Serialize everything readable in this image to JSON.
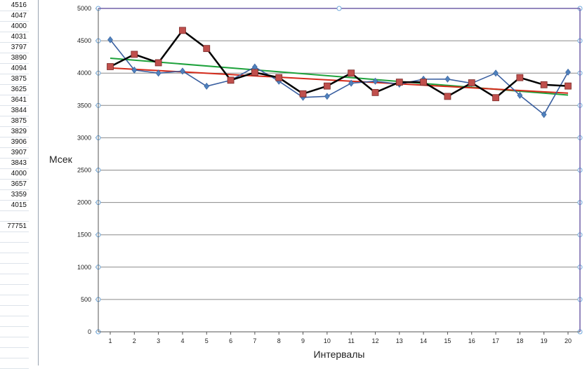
{
  "sheet": {
    "cells": [
      "4516",
      "4047",
      "4000",
      "4031",
      "3797",
      "3890",
      "4094",
      "3875",
      "3625",
      "3641",
      "3844",
      "3875",
      "3829",
      "3906",
      "3907",
      "3843",
      "4000",
      "3657",
      "3359",
      "4015",
      "",
      "77751"
    ]
  },
  "chart_data": {
    "type": "line",
    "ylabel": "Мсек",
    "xlabel": "Интервалы",
    "ylim": [
      0,
      5000
    ],
    "ytick_step": 500,
    "x": [
      1,
      2,
      3,
      4,
      5,
      6,
      7,
      8,
      9,
      10,
      11,
      12,
      13,
      14,
      15,
      16,
      17,
      18,
      19,
      20
    ],
    "grid": true,
    "series": [
      {
        "color": "#3a5fa0",
        "marker": "diamond",
        "marker_color": "#4f81bd",
        "values": [
          4516,
          4047,
          4000,
          4031,
          3797,
          3890,
          4094,
          3875,
          3625,
          3641,
          3844,
          3875,
          3829,
          3906,
          3907,
          3843,
          4000,
          3657,
          3359,
          4015
        ]
      },
      {
        "color": "#000000",
        "marker": "square",
        "marker_color": "#c0504d",
        "values": [
          4100,
          4290,
          4160,
          4660,
          4380,
          3890,
          4010,
          3930,
          3680,
          3800,
          4000,
          3700,
          3860,
          3860,
          3640,
          3850,
          3620,
          3930,
          3820,
          3800
        ]
      }
    ],
    "trendlines": [
      {
        "color": "#1ea23c",
        "start": 4230,
        "end": 3660
      },
      {
        "color": "#d42a1a",
        "start": 4080,
        "end": 3690
      }
    ],
    "plot_border_color": "#7060a8"
  }
}
